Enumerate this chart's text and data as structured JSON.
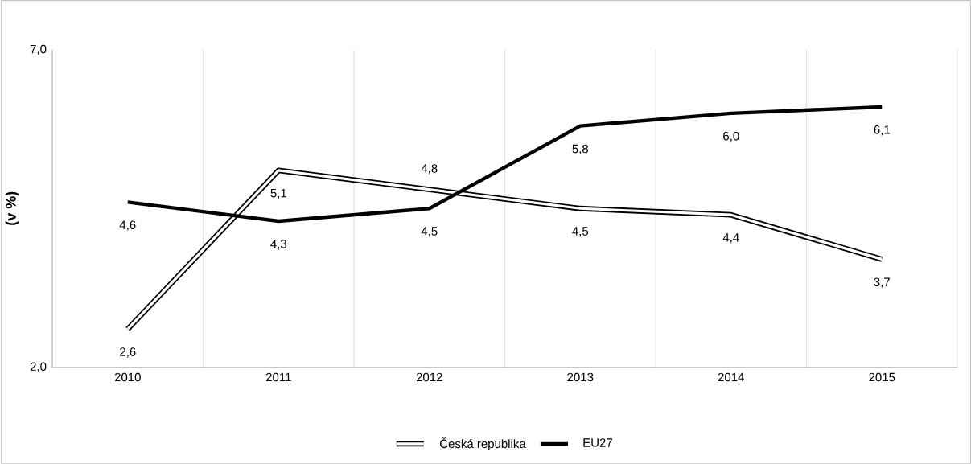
{
  "chart_data": {
    "type": "line",
    "ylabel": "(v %)",
    "categories": [
      "2010",
      "2011",
      "2012",
      "2013",
      "2014",
      "2015"
    ],
    "series": [
      {
        "name": "Česká republika",
        "color": "#000000",
        "values": [
          2.6,
          5.1,
          4.8,
          4.5,
          4.4,
          3.7
        ],
        "value_labels": [
          "2,6",
          "5,1",
          "4,8",
          "4,5",
          "4,4",
          "3,7"
        ]
      },
      {
        "name": "EU27",
        "color": "#000000",
        "values": [
          4.6,
          4.3,
          4.5,
          5.8,
          6.0,
          6.1
        ],
        "value_labels": [
          "4,6",
          "4,3",
          "4,5",
          "5,8",
          "6,0",
          "6,1"
        ]
      }
    ],
    "ylim": [
      2.0,
      7.0
    ],
    "yticks": [
      {
        "value": 2.0,
        "label": "2,0"
      },
      {
        "value": 7.0,
        "label": "7,0"
      }
    ],
    "grid": "x",
    "legend": "bottom",
    "marker": "none",
    "line_style": "solid"
  }
}
